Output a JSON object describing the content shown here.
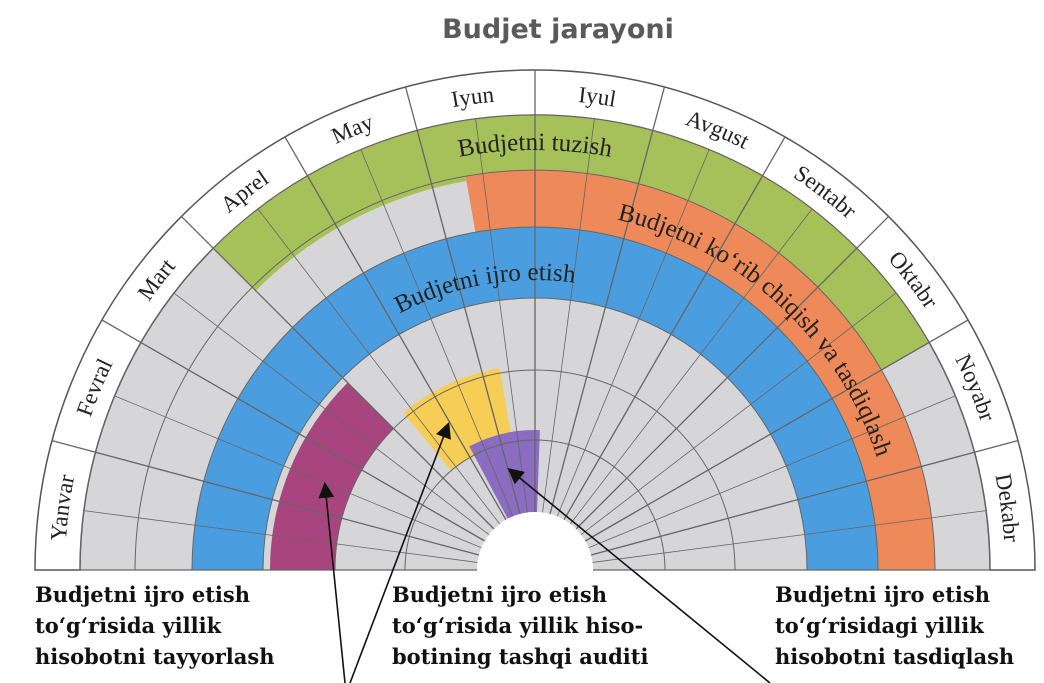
{
  "title": "Budjet jarayoni",
  "months": [
    "Yanvar",
    "Fevral",
    "Mart",
    "Aprel",
    "May",
    "Iyun",
    "Iyul",
    "Avgust",
    "Sentabr",
    "Oktabr",
    "Noyabr",
    "Dekabr"
  ],
  "bands": [
    {
      "label": "Budjetni tuzish"
    },
    {
      "label": "Budjetni ko‘rib chiqish va tasdiqlash"
    },
    {
      "label": "Budjetni ijro etish"
    }
  ],
  "callouts": [
    {
      "lines": [
        "Budjetni ijro etish",
        "to‘g‘risida yillik",
        "hisobotni tayyorlash"
      ]
    },
    {
      "lines": [
        "Budjetni ijro etish",
        "to‘g‘risida yillik hiso-",
        "botining tashqi auditi"
      ]
    },
    {
      "lines": [
        "Budjetni ijro etish",
        "to‘g‘risidagi yillik",
        "hisobotni tasdiqlash"
      ]
    }
  ]
}
